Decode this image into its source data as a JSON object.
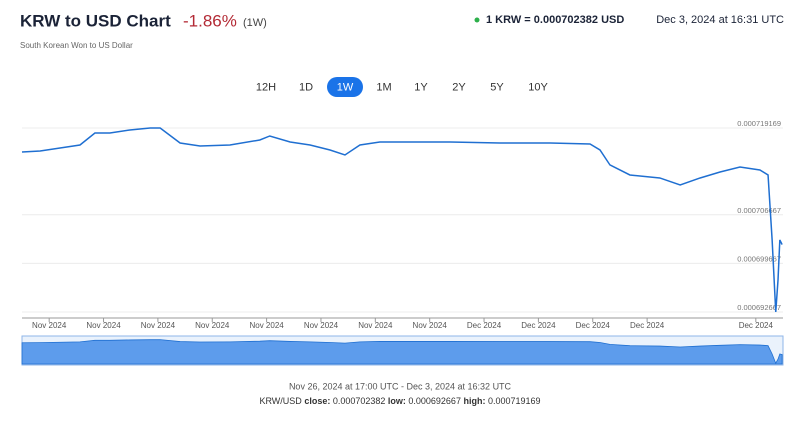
{
  "header": {
    "title": "KRW to USD Chart",
    "change": "-1.86%",
    "period": "(1W)",
    "subtitle": "South Korean Won to US Dollar",
    "rate": "1 KRW = 0.000702382 USD",
    "timestamp": "Dec 3, 2024 at 16:31 UTC"
  },
  "ranges": {
    "items": [
      "12H",
      "1D",
      "1W",
      "1M",
      "1Y",
      "2Y",
      "5Y",
      "10Y"
    ],
    "active": 2
  },
  "chart_data": {
    "type": "line",
    "x": [
      0,
      4.0,
      8.4,
      12.8,
      16.1,
      19.4,
      23.8,
      28.3,
      30.5,
      34.9,
      39.3,
      45.9,
      52.5,
      54.7,
      59.2,
      63.6,
      68.0,
      71.3,
      74.6,
      79.0,
      83.4,
      94.5,
      105.5,
      116.6,
      125.4,
      127.6,
      129.8,
      134.2,
      140.8,
      145.3,
      149.7,
      154.1,
      158.5,
      162.9,
      164.7,
      165.6,
      166.4,
      166.9,
      167.3,
      167.8
    ],
    "series": [
      {
        "name": "KRW/USD",
        "color": "#1f6fd1",
        "values": [
          0.000715713,
          0.000715857,
          0.000716289,
          0.000716721,
          0.000718449,
          0.000718449,
          0.000718881,
          0.000719169,
          0.000719169,
          0.000717009,
          0.000716577,
          0.000716721,
          0.000717441,
          0.000718017,
          0.000717153,
          0.000716721,
          0.000716001,
          0.000715281,
          0.000716721,
          0.000717153,
          0.000717153,
          0.000717153,
          0.000717009,
          0.000717009,
          0.000716865,
          0.000716001,
          0.000713841,
          0.000712401,
          0.000711969,
          0.000710961,
          0.000711969,
          0.000712833,
          0.000713553,
          0.000713121,
          0.000712401,
          0.000703041,
          0.000692667,
          0.000697281,
          0.000703041,
          0.000702382
        ]
      }
    ],
    "xlim": [
      0,
      168
    ],
    "xticks": [
      {
        "value": 6,
        "label": "Nov 2024"
      },
      {
        "value": 18,
        "label": "Nov 2024"
      },
      {
        "value": 30,
        "label": "Nov 2024"
      },
      {
        "value": 42,
        "label": "Nov 2024"
      },
      {
        "value": 54,
        "label": "Nov 2024"
      },
      {
        "value": 66,
        "label": "Nov 2024"
      },
      {
        "value": 78,
        "label": "Nov 2024"
      },
      {
        "value": 90,
        "label": "Nov 2024"
      },
      {
        "value": 102,
        "label": "Dec 2024"
      },
      {
        "value": 114,
        "label": "Dec 2024"
      },
      {
        "value": 126,
        "label": "Dec 2024"
      },
      {
        "value": 138,
        "label": "Dec 2024"
      },
      {
        "value": 162,
        "label": "Dec 2024"
      }
    ],
    "ylim": [
      0.0006918,
      0.00072104
    ],
    "yticks": [
      0.000692667,
      0.000699667,
      0.000706667,
      0.000719169
    ],
    "grid": true
  },
  "footer": {
    "range": "Nov 26, 2024 at 17:00 UTC - Dec 3, 2024 at 16:32 UTC",
    "pair": "KRW/USD",
    "stats": [
      {
        "label": "close:",
        "value": "0.000702382"
      },
      {
        "label": "low:",
        "value": "0.000692667"
      },
      {
        "label": "high:",
        "value": "0.000719169"
      }
    ]
  }
}
